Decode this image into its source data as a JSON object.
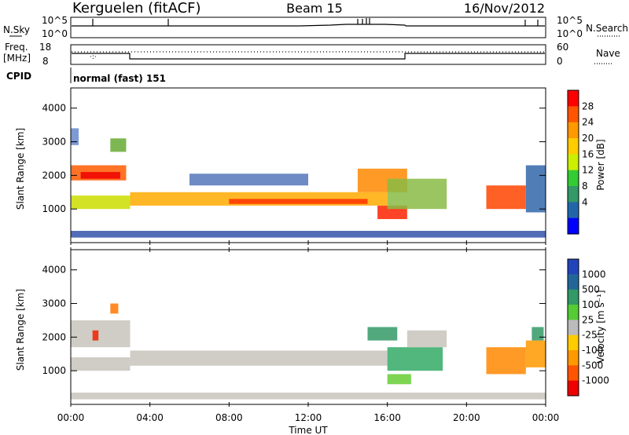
{
  "header": {
    "station": "Kerguelen (fitACF)",
    "beam": "Beam 15",
    "date": "16/Nov/2012"
  },
  "noise_panel": {
    "left_label": "N.Sky",
    "right_label": "N.Search",
    "left_ticks": [
      "10^5",
      "10^0"
    ],
    "right_ticks": [
      "10^5",
      "10^0"
    ]
  },
  "freq_panel": {
    "left_label_1": "Freq.",
    "left_label_2": "[MHz]",
    "right_label": "Nave",
    "left_ticks": [
      "18",
      "8"
    ],
    "right_ticks": [
      "60",
      "0"
    ]
  },
  "cpid": {
    "label": "CPID",
    "value": "normal (fast) 151"
  },
  "chart_data": [
    {
      "type": "heatmap",
      "name": "power",
      "ylabel": "Slant Range [km]",
      "yticks": [
        1000,
        2000,
        3000,
        4000
      ],
      "ylim": [
        0,
        4600
      ],
      "xlim": [
        0,
        24
      ],
      "colorbar": {
        "label": "Power [dB]",
        "ticks": [
          "28",
          "24",
          "20",
          "16",
          "12",
          "8",
          "4"
        ],
        "colors": [
          "#ff0000",
          "#ff5500",
          "#ff9900",
          "#ffcc00",
          "#ccee00",
          "#33cc33",
          "#339966",
          "#2266aa",
          "#0000ff"
        ]
      },
      "regions": [
        {
          "t0": 0.0,
          "t1": 0.4,
          "r0": 2900,
          "r1": 3400,
          "color": "#6688cc"
        },
        {
          "t0": 0.0,
          "t1": 2.8,
          "r0": 1850,
          "r1": 2300,
          "color": "#ff5a00"
        },
        {
          "t0": 0.5,
          "t1": 2.5,
          "r0": 1900,
          "r1": 2100,
          "color": "#ee0000"
        },
        {
          "t0": 0.0,
          "t1": 3.0,
          "r0": 1000,
          "r1": 1400,
          "color": "#ccdd00"
        },
        {
          "t0": 2.0,
          "t1": 2.8,
          "r0": 2700,
          "r1": 3100,
          "color": "#66aa33"
        },
        {
          "t0": 3.0,
          "t1": 16.0,
          "r0": 1100,
          "r1": 1500,
          "color": "#ffaa00"
        },
        {
          "t0": 8.0,
          "t1": 15.0,
          "r0": 1150,
          "r1": 1300,
          "color": "#ff3300"
        },
        {
          "t0": 6.0,
          "t1": 12.0,
          "r0": 1700,
          "r1": 2050,
          "color": "#5577bb"
        },
        {
          "t0": 14.5,
          "t1": 17.0,
          "r0": 1500,
          "r1": 2200,
          "color": "#ff8800"
        },
        {
          "t0": 15.5,
          "t1": 17.0,
          "r0": 700,
          "r1": 1100,
          "color": "#ff2200"
        },
        {
          "t0": 16.0,
          "t1": 19.0,
          "r0": 1000,
          "r1": 1900,
          "color": "#88bb44"
        },
        {
          "t0": 21.0,
          "t1": 23.0,
          "r0": 1000,
          "r1": 1700,
          "color": "#ff4400"
        },
        {
          "t0": 23.0,
          "t1": 24.0,
          "r0": 900,
          "r1": 2300,
          "color": "#3366aa"
        },
        {
          "t0": 0.0,
          "t1": 24.0,
          "r0": 150,
          "r1": 350,
          "color": "#3355aa"
        }
      ]
    },
    {
      "type": "heatmap",
      "name": "velocity",
      "ylabel": "Slant Range [km]",
      "yticks": [
        1000,
        2000,
        3000,
        4000
      ],
      "ylim": [
        0,
        4600
      ],
      "xlim": [
        0,
        24
      ],
      "xticks": [
        "00:00",
        "04:00",
        "08:00",
        "12:00",
        "16:00",
        "20:00",
        "00:00"
      ],
      "xlabel": "Time UT",
      "colorbar": {
        "label": "Velocity [m s⁻¹]",
        "ticks": [
          "1000",
          "500",
          "100",
          "25",
          "-25",
          "-100",
          "-500",
          "-1000"
        ],
        "colors": [
          "#2244bb",
          "#226699",
          "#339966",
          "#55cc33",
          "#bbbbbb",
          "#ffcc00",
          "#ff9900",
          "#ff5500",
          "#ee0000"
        ]
      },
      "regions": [
        {
          "t0": 0.0,
          "t1": 3.0,
          "r0": 1700,
          "r1": 2500,
          "color": "#c8c4bc"
        },
        {
          "t0": 0.0,
          "t1": 3.0,
          "r0": 1000,
          "r1": 1400,
          "color": "#c8c4bc"
        },
        {
          "t0": 3.0,
          "t1": 16.0,
          "r0": 1150,
          "r1": 1600,
          "color": "#c8c4bc"
        },
        {
          "t0": 1.1,
          "t1": 1.4,
          "r0": 1900,
          "r1": 2200,
          "color": "#ee2200"
        },
        {
          "t0": 2.0,
          "t1": 2.4,
          "r0": 2700,
          "r1": 3000,
          "color": "#ff7700"
        },
        {
          "t0": 15.0,
          "t1": 16.5,
          "r0": 1900,
          "r1": 2300,
          "color": "#339966"
        },
        {
          "t0": 16.0,
          "t1": 18.8,
          "r0": 1000,
          "r1": 1700,
          "color": "#33aa66"
        },
        {
          "t0": 16.0,
          "t1": 17.2,
          "r0": 600,
          "r1": 900,
          "color": "#66cc33"
        },
        {
          "t0": 17.0,
          "t1": 19.0,
          "r0": 1700,
          "r1": 2200,
          "color": "#c8c4bc"
        },
        {
          "t0": 21.0,
          "t1": 23.0,
          "r0": 900,
          "r1": 1700,
          "color": "#ff8800"
        },
        {
          "t0": 23.0,
          "t1": 24.0,
          "r0": 1100,
          "r1": 1900,
          "color": "#ff9900"
        },
        {
          "t0": 23.3,
          "t1": 23.9,
          "r0": 1900,
          "r1": 2300,
          "color": "#339966"
        },
        {
          "t0": 0.0,
          "t1": 24.0,
          "r0": 150,
          "r1": 350,
          "color": "#c8c4bc"
        }
      ]
    }
  ]
}
